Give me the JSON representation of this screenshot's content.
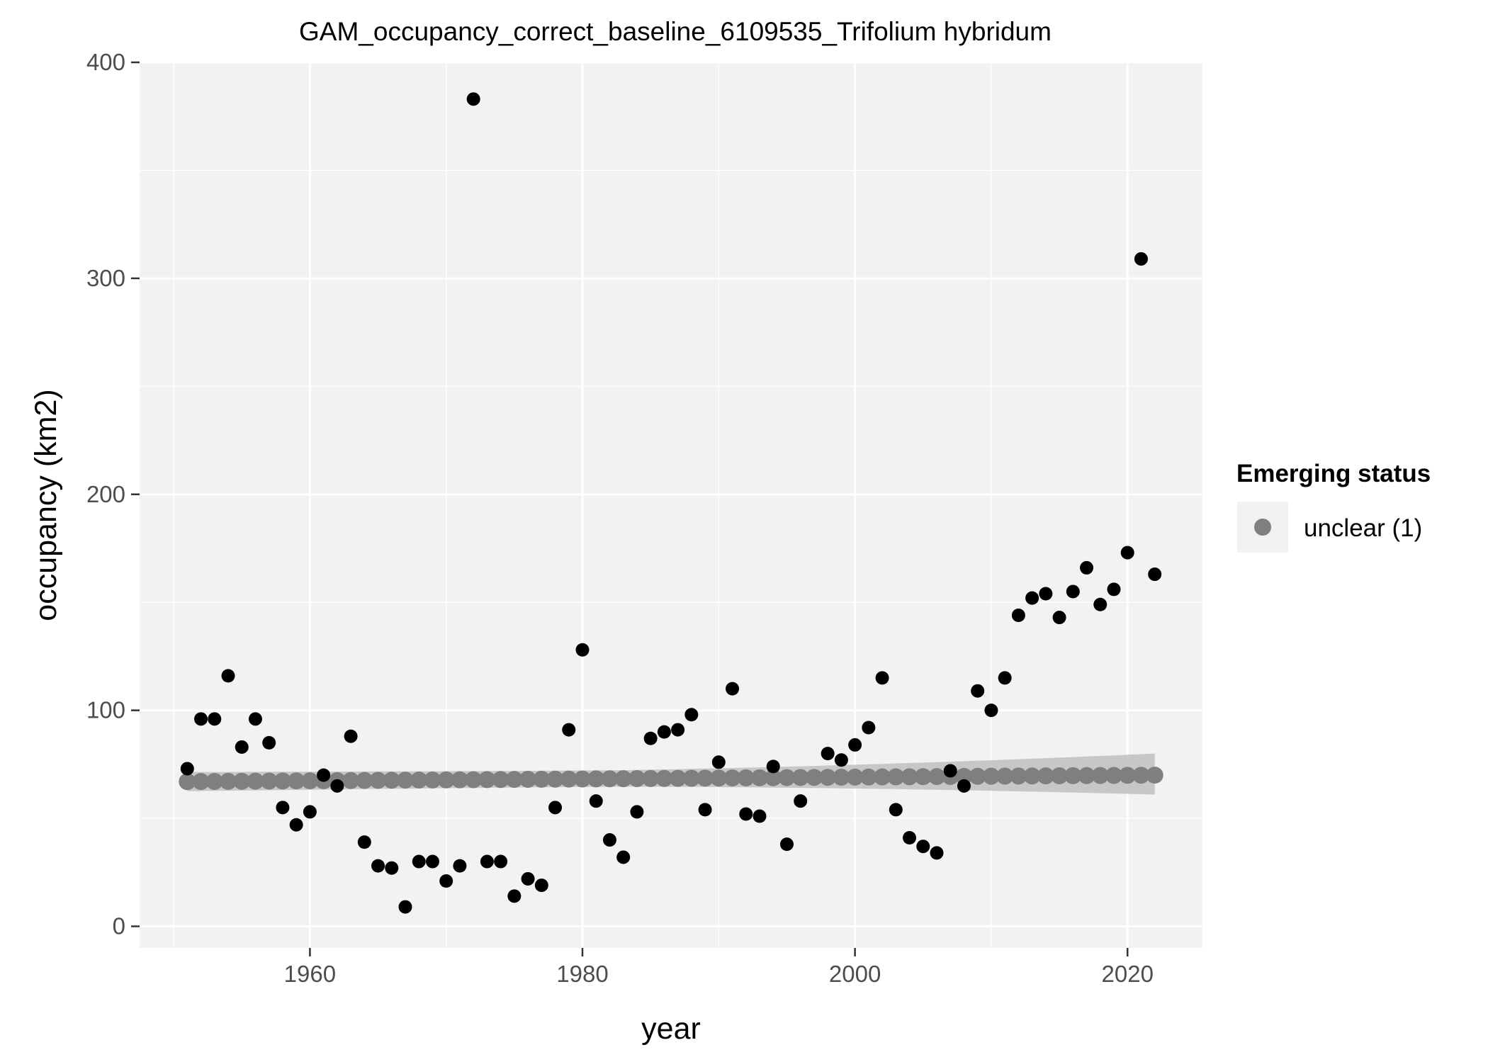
{
  "chart_data": {
    "type": "scatter",
    "title": "GAM_occupancy_correct_baseline_6109535_Trifolium hybridum",
    "xlabel": "year",
    "ylabel": "occupancy (km2)",
    "xlim": [
      1947.5,
      2025.5
    ],
    "ylim": [
      -10,
      400
    ],
    "x_ticks": [
      1960,
      1980,
      2000,
      2020
    ],
    "x_tick_labels": [
      "1960",
      "1980",
      "2000",
      "2020"
    ],
    "y_ticks": [
      0,
      100,
      200,
      300,
      400
    ],
    "y_tick_labels": [
      "0",
      "100",
      "200",
      "300",
      "400"
    ],
    "grid": true,
    "legend": {
      "title": "Emerging status",
      "position": "right",
      "entries": [
        {
          "label": "unclear (1)",
          "color": "#7f7f7f"
        }
      ]
    },
    "colors": {
      "panel": "#f2f2f2",
      "grid": "#ffffff",
      "points": "#000000",
      "fit": "#7f7f7f",
      "ribbon": "#bfbfbf"
    },
    "series": [
      {
        "role": "observed",
        "x": [
          1951,
          1952,
          1953,
          1954,
          1955,
          1956,
          1957,
          1958,
          1959,
          1960,
          1961,
          1962,
          1963,
          1964,
          1965,
          1966,
          1967,
          1968,
          1969,
          1970,
          1971,
          1972,
          1973,
          1974,
          1975,
          1976,
          1977,
          1978,
          1979,
          1980,
          1981,
          1982,
          1983,
          1984,
          1985,
          1986,
          1987,
          1988,
          1989,
          1990,
          1991,
          1992,
          1993,
          1994,
          1995,
          1996,
          1998,
          1999,
          2000,
          2001,
          2002,
          2003,
          2004,
          2005,
          2006,
          2007,
          2008,
          2009,
          2010,
          2011,
          2012,
          2013,
          2014,
          2015,
          2016,
          2017,
          2018,
          2019,
          2020,
          2021,
          2022
        ],
        "y": [
          73,
          96,
          96,
          116,
          83,
          96,
          85,
          55,
          47,
          53,
          70,
          65,
          88,
          39,
          28,
          27,
          9,
          30,
          30,
          21,
          28,
          383,
          30,
          30,
          14,
          22,
          19,
          55,
          91,
          128,
          58,
          40,
          32,
          53,
          87,
          90,
          91,
          98,
          54,
          76,
          110,
          52,
          51,
          74,
          38,
          58,
          80,
          77,
          84,
          92,
          115,
          54,
          41,
          37,
          34,
          72,
          65,
          109,
          100,
          115,
          144,
          152,
          154,
          143,
          155,
          166,
          149,
          156,
          173,
          309,
          163
        ]
      },
      {
        "role": "fit",
        "name": "unclear (1)",
        "x": [
          1951,
          1952,
          1953,
          1954,
          1955,
          1956,
          1957,
          1958,
          1959,
          1960,
          1961,
          1962,
          1963,
          1964,
          1965,
          1966,
          1967,
          1968,
          1969,
          1970,
          1971,
          1972,
          1973,
          1974,
          1975,
          1976,
          1977,
          1978,
          1979,
          1980,
          1981,
          1982,
          1983,
          1984,
          1985,
          1986,
          1987,
          1988,
          1989,
          1990,
          1991,
          1992,
          1993,
          1994,
          1995,
          1996,
          1997,
          1998,
          1999,
          2000,
          2001,
          2002,
          2003,
          2004,
          2005,
          2006,
          2007,
          2008,
          2009,
          2010,
          2011,
          2012,
          2013,
          2014,
          2015,
          2016,
          2017,
          2018,
          2019,
          2020,
          2021,
          2022
        ],
        "y_start": 67,
        "y_end": 70,
        "ci_lower_start": 62,
        "ci_upper_start": 72,
        "ci_lower_end": 61,
        "ci_upper_end": 80
      }
    ]
  }
}
